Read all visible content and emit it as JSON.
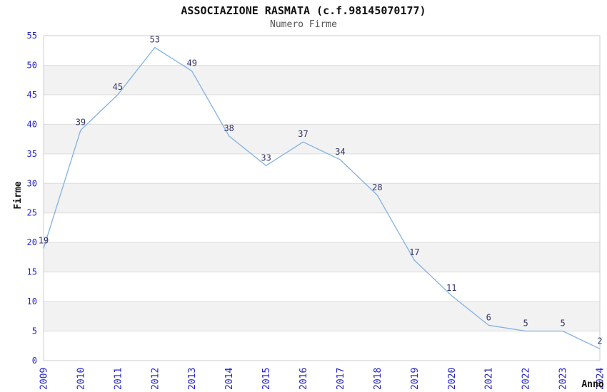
{
  "chart_data": {
    "type": "line",
    "title": "ASSOCIAZIONE RASMATA (c.f.98145070177)",
    "subtitle": "Numero Firme",
    "xlabel": "Anno",
    "ylabel": "Firme",
    "x": [
      2009,
      2010,
      2011,
      2012,
      2013,
      2014,
      2015,
      2016,
      2017,
      2018,
      2019,
      2020,
      2021,
      2022,
      2023,
      2024
    ],
    "series": [
      {
        "name": "Numero Firme",
        "values": [
          19,
          39,
          45,
          53,
          49,
          38,
          33,
          37,
          34,
          28,
          17,
          11,
          6,
          5,
          5,
          2
        ]
      }
    ],
    "point_labels": [
      19,
      39,
      45,
      53,
      49,
      38,
      33,
      37,
      34,
      28,
      17,
      11,
      6,
      5,
      5,
      2
    ],
    "ylim": [
      0,
      55
    ],
    "ytick_step": 5,
    "yticks": [
      0,
      5,
      10,
      15,
      20,
      25,
      30,
      35,
      40,
      45,
      50,
      55
    ],
    "grid": "horizontal-bands",
    "legend": "none",
    "colors": {
      "line": "#82b1e4",
      "tick_label": "#2222cc",
      "point_label": "#333366",
      "band_fill": "#f2f2f2",
      "grid_line": "#dcdcdc",
      "plot_border": "#cccccc",
      "title": "#111111",
      "subtitle": "#555555",
      "axis_title": "#111111",
      "background": "#ffffff"
    }
  }
}
